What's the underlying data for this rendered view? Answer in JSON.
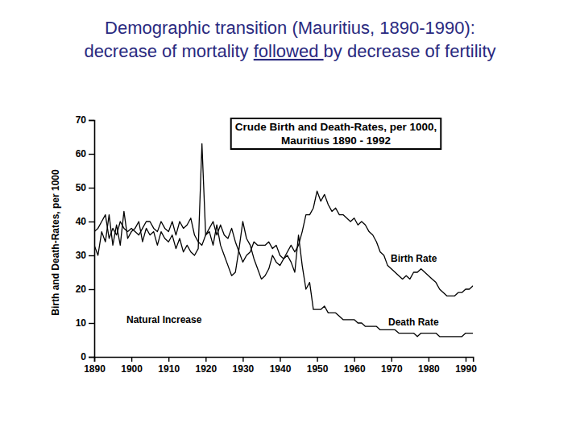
{
  "chart_data": {
    "type": "line",
    "title": "Demographic transition (Mauritius, 1890-1990):",
    "subtitle": "decrease of mortality followed by decrease of fertility",
    "annotations": [
      "Crude Birth and Death-Rates, per 1000,",
      "Mauritius 1890 - 1992",
      "Natural Increase"
    ],
    "y_label": "Birth and Death-Rates, per 1000",
    "x": [
      1890,
      1891,
      1892,
      1893,
      1894,
      1895,
      1896,
      1897,
      1898,
      1899,
      1900,
      1901,
      1902,
      1903,
      1904,
      1905,
      1906,
      1907,
      1908,
      1909,
      1910,
      1911,
      1912,
      1913,
      1914,
      1915,
      1916,
      1917,
      1918,
      1919,
      1920,
      1921,
      1922,
      1923,
      1924,
      1925,
      1926,
      1927,
      1928,
      1929,
      1930,
      1931,
      1932,
      1933,
      1934,
      1935,
      1936,
      1937,
      1938,
      1939,
      1940,
      1941,
      1942,
      1943,
      1944,
      1945,
      1946,
      1947,
      1948,
      1949,
      1950,
      1951,
      1952,
      1953,
      1954,
      1955,
      1956,
      1957,
      1958,
      1959,
      1960,
      1961,
      1962,
      1963,
      1964,
      1965,
      1966,
      1967,
      1968,
      1969,
      1970,
      1971,
      1972,
      1973,
      1974,
      1975,
      1976,
      1977,
      1978,
      1979,
      1980,
      1981,
      1982,
      1983,
      1984,
      1985,
      1986,
      1987,
      1988,
      1989,
      1990,
      1991,
      1992
    ],
    "series": [
      {
        "name": "Birth Rate",
        "color": "#000000",
        "values": [
          37,
          38,
          40,
          42,
          35,
          38,
          36,
          40,
          38,
          37,
          38,
          37,
          36,
          38,
          40,
          40,
          38,
          37,
          40,
          38,
          37,
          40,
          36,
          40,
          38,
          39,
          41,
          36,
          34,
          33,
          36,
          38,
          40,
          36,
          39,
          36,
          35,
          38,
          34,
          31,
          28,
          30,
          31,
          34,
          33,
          33,
          33,
          34,
          32,
          33,
          30,
          29,
          31,
          33,
          31,
          33,
          37,
          42,
          42,
          44,
          49,
          46,
          48,
          45,
          43,
          44,
          42,
          42,
          41,
          40,
          41,
          39,
          40,
          39,
          37,
          36,
          34,
          31,
          30,
          27,
          26,
          25,
          24,
          23,
          24,
          23,
          25,
          25,
          26,
          25,
          24,
          23,
          22,
          20,
          19,
          18,
          18,
          18,
          19,
          19,
          20,
          20,
          21
        ]
      },
      {
        "name": "Death Rate",
        "color": "#000000",
        "values": [
          33,
          30,
          37,
          34,
          42,
          33,
          39,
          33,
          43,
          35,
          37,
          38,
          40,
          34,
          38,
          36,
          37,
          33,
          37,
          35,
          34,
          36,
          32,
          35,
          31,
          33,
          31,
          30,
          32,
          63,
          36,
          37,
          33,
          39,
          33,
          30,
          27,
          24,
          25,
          32,
          40,
          35,
          33,
          29,
          26,
          23,
          24,
          26,
          30,
          28,
          27,
          29,
          30,
          28,
          25,
          36,
          27,
          20,
          22,
          14,
          14,
          14,
          15,
          13,
          13,
          13,
          12,
          11,
          11,
          11,
          11,
          10,
          10,
          9,
          9,
          9,
          9,
          8,
          8,
          8,
          8,
          8,
          7,
          7,
          7,
          7,
          7,
          6,
          7,
          7,
          7,
          7,
          7,
          6,
          6,
          6,
          6,
          6,
          6,
          6,
          7,
          7,
          7
        ]
      }
    ],
    "xlim": [
      1890,
      1992
    ],
    "xticks": [
      1890,
      1900,
      1910,
      1920,
      1930,
      1940,
      1950,
      1960,
      1970,
      1980,
      1990
    ],
    "ylim": [
      0,
      70
    ],
    "yticks": [
      0,
      10,
      20,
      30,
      40,
      50,
      60,
      70
    ],
    "grid": false
  }
}
